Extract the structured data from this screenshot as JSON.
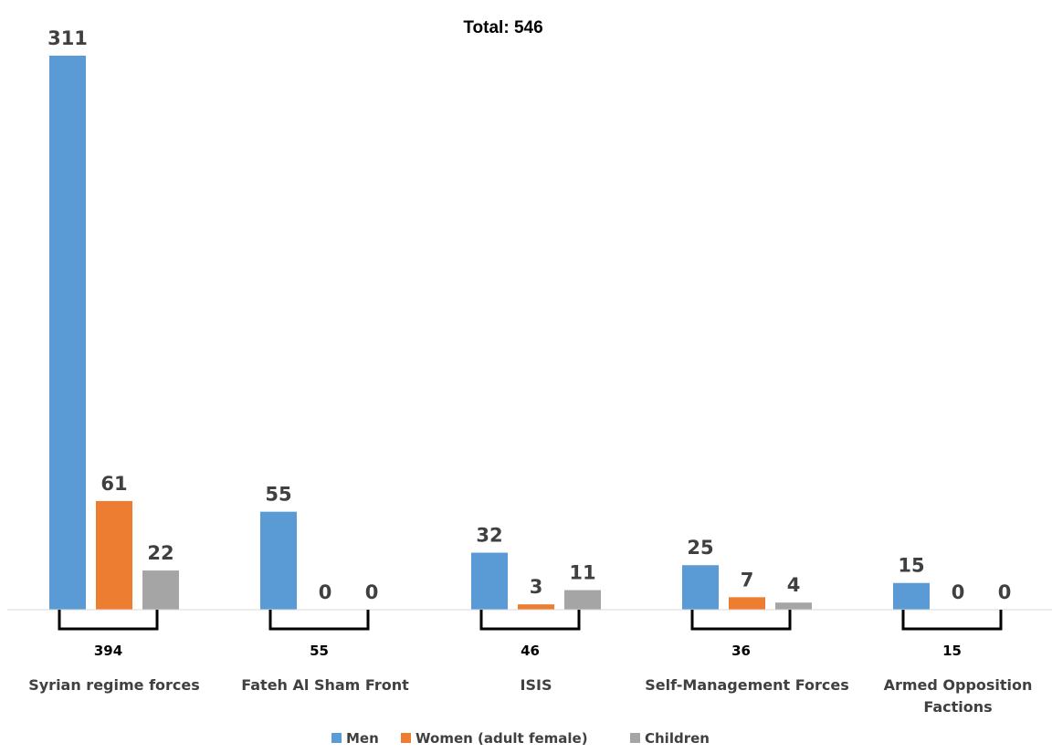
{
  "chart_data": {
    "type": "bar",
    "title": "Total: 546",
    "categories": [
      "Syrian regime forces",
      "Fateh Al Sham Front",
      "ISIS",
      "Self-Management Forces",
      "Armed Opposition Factions"
    ],
    "category_lines": [
      [
        "Syrian regime forces"
      ],
      [
        "Fateh Al Sham Front"
      ],
      [
        "ISIS"
      ],
      [
        "Self-Management Forces"
      ],
      [
        "Armed Opposition",
        "Factions"
      ]
    ],
    "series": [
      {
        "name": "Men",
        "values": [
          311,
          55,
          32,
          25,
          15
        ],
        "color": "#5b9bd5"
      },
      {
        "name": "Women (adult female)",
        "values": [
          61,
          0,
          3,
          7,
          0
        ],
        "color": "#ed7d31"
      },
      {
        "name": "Children",
        "values": [
          22,
          0,
          11,
          4,
          0
        ],
        "color": "#a5a5a5"
      }
    ],
    "totals": [
      394,
      55,
      46,
      36,
      15
    ],
    "ylim": [
      0,
      311
    ],
    "grid": false,
    "legend_position": "bottom",
    "xlabel": "",
    "ylabel": ""
  }
}
